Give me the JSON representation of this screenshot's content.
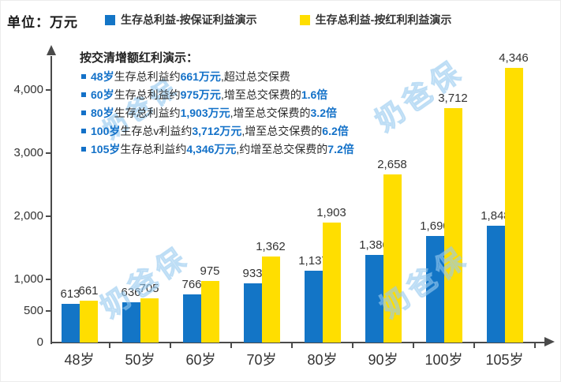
{
  "unit_label": "单位：万元",
  "legend": [
    {
      "label": "生存总利益-按保证利益演示",
      "color": "#1375C6"
    },
    {
      "label": "生存总利益-按红利利益演示",
      "color": "#FFDE00"
    }
  ],
  "annotations": {
    "title": "按交清增额红利演示：",
    "bullets": [
      {
        "segments": [
          {
            "t": "48岁",
            "hl": true
          },
          {
            "t": "生存总利益约",
            "hl": false
          },
          {
            "t": "661万元",
            "hl": true
          },
          {
            "t": ",超过总交保费",
            "hl": false
          }
        ]
      },
      {
        "segments": [
          {
            "t": "60岁",
            "hl": true
          },
          {
            "t": "生存总利益约",
            "hl": false
          },
          {
            "t": "975万元",
            "hl": true
          },
          {
            "t": ",增至总交保费的",
            "hl": false
          },
          {
            "t": "1.6倍",
            "hl": true
          }
        ]
      },
      {
        "segments": [
          {
            "t": "80岁",
            "hl": true
          },
          {
            "t": "生存总利益约",
            "hl": false
          },
          {
            "t": "1,903万元",
            "hl": true
          },
          {
            "t": ",增至总交保费的",
            "hl": false
          },
          {
            "t": "3.2倍",
            "hl": true
          }
        ]
      },
      {
        "segments": [
          {
            "t": "100岁",
            "hl": true
          },
          {
            "t": "生存总v利益约",
            "hl": false
          },
          {
            "t": "3,712万元",
            "hl": true
          },
          {
            "t": ",增至总交保费的",
            "hl": false
          },
          {
            "t": "6.2倍",
            "hl": true
          }
        ]
      },
      {
        "segments": [
          {
            "t": "105岁",
            "hl": true
          },
          {
            "t": "生存总利益约",
            "hl": false
          },
          {
            "t": "4,346万元",
            "hl": true
          },
          {
            "t": ",约增至总交保费的",
            "hl": false
          },
          {
            "t": "7.2倍",
            "hl": true
          }
        ]
      }
    ]
  },
  "chart_data": {
    "type": "bar",
    "title": "",
    "unit": "万元",
    "categories": [
      "48岁",
      "50岁",
      "60岁",
      "70岁",
      "80岁",
      "90岁",
      "100岁",
      "105岁"
    ],
    "series": [
      {
        "name": "生存总利益-按保证利益演示",
        "color": "#1375C6",
        "values": [
          613,
          636,
          766,
          933,
          1137,
          1386,
          1690,
          1848
        ]
      },
      {
        "name": "生存总利益-按红利利益演示",
        "color": "#FFDE00",
        "values": [
          661,
          705,
          975,
          1362,
          1903,
          2658,
          3712,
          4346
        ]
      }
    ],
    "y_ticks": [
      0,
      500,
      1000,
      2000,
      3000,
      4000
    ],
    "ylim": [
      0,
      4700
    ],
    "grid": false,
    "legend_position": "top",
    "value_labels": true
  },
  "watermark": {
    "text": "奶爸保"
  },
  "colors": {
    "bar_blue": "#1375C6",
    "bar_yellow": "#FFDE00",
    "highlight_text": "#1371C8",
    "axis": "#4A4A4A",
    "text_dark": "#333333"
  }
}
